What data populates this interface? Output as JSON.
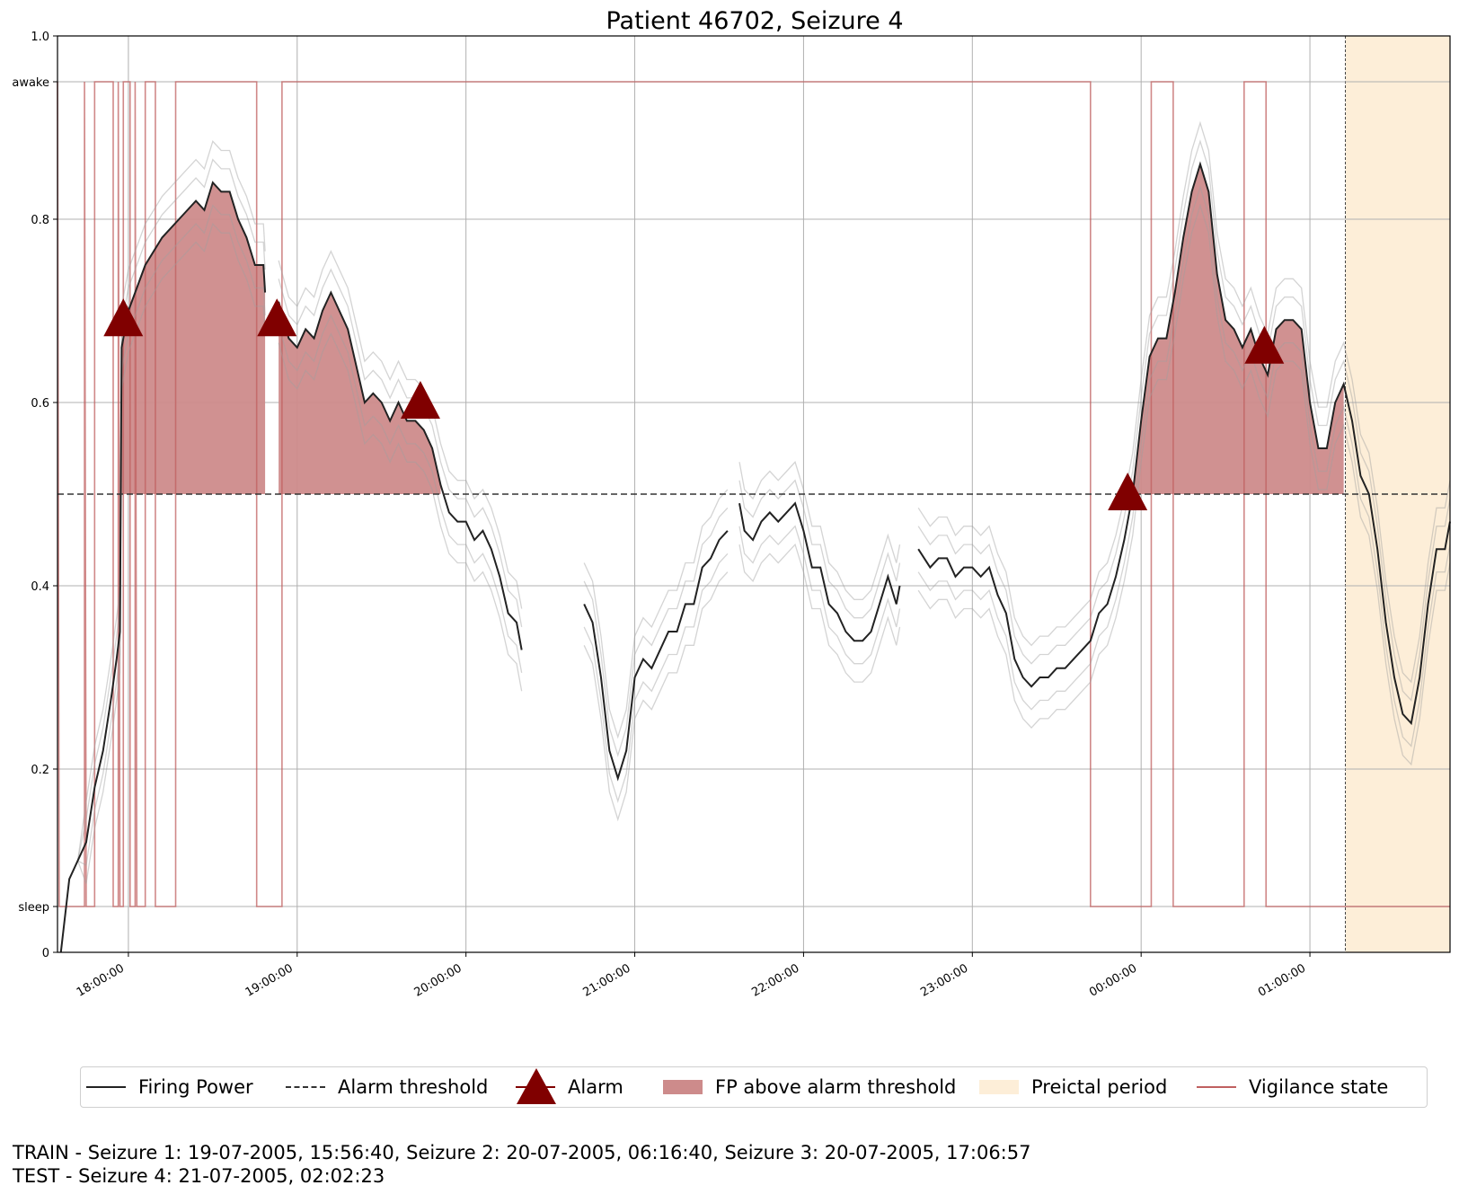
{
  "chart_data": {
    "type": "line",
    "title": "Patient 46702, Seizure 4",
    "xlabel": "",
    "ylabel": "",
    "x_range_hours": [
      17.58,
      25.83
    ],
    "ylim": [
      0,
      1.0
    ],
    "x_ticks": [
      {
        "t": 18,
        "label": "18:00:00"
      },
      {
        "t": 19,
        "label": "19:00:00"
      },
      {
        "t": 20,
        "label": "20:00:00"
      },
      {
        "t": 21,
        "label": "21:00:00"
      },
      {
        "t": 22,
        "label": "22:00:00"
      },
      {
        "t": 23,
        "label": "23:00:00"
      },
      {
        "t": 24,
        "label": "00:00:00"
      },
      {
        "t": 25,
        "label": "01:00:00"
      }
    ],
    "y_ticks": [
      {
        "v": 0,
        "label": "0"
      },
      {
        "v": 0.05,
        "label": "sleep"
      },
      {
        "v": 0.2,
        "label": "0.2"
      },
      {
        "v": 0.4,
        "label": "0.4"
      },
      {
        "v": 0.6,
        "label": "0.6"
      },
      {
        "v": 0.8,
        "label": "0.8"
      },
      {
        "v": 0.95,
        "label": "awake"
      },
      {
        "v": 1.0,
        "label": "1.0"
      }
    ],
    "grid": true,
    "alarm_threshold": 0.5,
    "preictal_period": [
      25.21,
      25.83
    ],
    "alarms": [
      {
        "t": 17.97,
        "value": 0.69
      },
      {
        "t": 18.88,
        "value": 0.69
      },
      {
        "t": 19.73,
        "value": 0.6
      },
      {
        "t": 23.92,
        "value": 0.5
      },
      {
        "t": 24.73,
        "value": 0.66
      }
    ],
    "firing_power_segments": [
      [
        [
          17.6,
          0.0
        ],
        [
          17.65,
          0.08
        ],
        [
          17.7,
          0.1
        ],
        [
          17.75,
          0.12
        ],
        [
          17.8,
          0.18
        ],
        [
          17.85,
          0.22
        ],
        [
          17.9,
          0.28
        ],
        [
          17.93,
          0.32
        ],
        [
          17.95,
          0.35
        ],
        [
          17.96,
          0.66
        ],
        [
          18.0,
          0.7
        ],
        [
          18.1,
          0.75
        ],
        [
          18.2,
          0.78
        ],
        [
          18.3,
          0.8
        ],
        [
          18.4,
          0.82
        ],
        [
          18.45,
          0.81
        ],
        [
          18.5,
          0.84
        ],
        [
          18.55,
          0.83
        ],
        [
          18.6,
          0.83
        ],
        [
          18.65,
          0.8
        ],
        [
          18.7,
          0.78
        ],
        [
          18.75,
          0.75
        ],
        [
          18.8,
          0.75
        ],
        [
          18.81,
          0.72
        ]
      ],
      [
        [
          18.89,
          0.71
        ],
        [
          18.95,
          0.67
        ],
        [
          19.0,
          0.66
        ],
        [
          19.05,
          0.68
        ],
        [
          19.1,
          0.67
        ],
        [
          19.15,
          0.7
        ],
        [
          19.2,
          0.72
        ],
        [
          19.25,
          0.7
        ],
        [
          19.3,
          0.68
        ],
        [
          19.35,
          0.64
        ],
        [
          19.4,
          0.6
        ],
        [
          19.45,
          0.61
        ],
        [
          19.5,
          0.6
        ],
        [
          19.55,
          0.58
        ],
        [
          19.6,
          0.6
        ],
        [
          19.65,
          0.58
        ],
        [
          19.7,
          0.58
        ],
        [
          19.75,
          0.57
        ],
        [
          19.8,
          0.55
        ],
        [
          19.85,
          0.51
        ],
        [
          19.9,
          0.48
        ],
        [
          19.95,
          0.47
        ],
        [
          20.0,
          0.47
        ],
        [
          20.05,
          0.45
        ],
        [
          20.1,
          0.46
        ],
        [
          20.15,
          0.44
        ],
        [
          20.2,
          0.41
        ],
        [
          20.25,
          0.37
        ],
        [
          20.3,
          0.36
        ],
        [
          20.33,
          0.33
        ]
      ],
      [
        [
          20.7,
          0.38
        ],
        [
          20.75,
          0.36
        ],
        [
          20.8,
          0.3
        ],
        [
          20.85,
          0.22
        ],
        [
          20.9,
          0.19
        ],
        [
          20.95,
          0.22
        ],
        [
          21.0,
          0.3
        ],
        [
          21.05,
          0.32
        ],
        [
          21.1,
          0.31
        ],
        [
          21.15,
          0.33
        ],
        [
          21.2,
          0.35
        ],
        [
          21.25,
          0.35
        ],
        [
          21.3,
          0.38
        ],
        [
          21.35,
          0.38
        ],
        [
          21.4,
          0.42
        ],
        [
          21.45,
          0.43
        ],
        [
          21.5,
          0.45
        ],
        [
          21.55,
          0.46
        ]
      ],
      [
        [
          21.62,
          0.49
        ],
        [
          21.65,
          0.46
        ],
        [
          21.7,
          0.45
        ],
        [
          21.75,
          0.47
        ],
        [
          21.8,
          0.48
        ],
        [
          21.85,
          0.47
        ],
        [
          21.9,
          0.48
        ],
        [
          21.95,
          0.49
        ],
        [
          22.0,
          0.46
        ],
        [
          22.05,
          0.42
        ],
        [
          22.1,
          0.42
        ],
        [
          22.15,
          0.38
        ],
        [
          22.2,
          0.37
        ],
        [
          22.25,
          0.35
        ],
        [
          22.3,
          0.34
        ],
        [
          22.35,
          0.34
        ],
        [
          22.4,
          0.35
        ],
        [
          22.45,
          0.38
        ],
        [
          22.5,
          0.41
        ],
        [
          22.55,
          0.38
        ],
        [
          22.57,
          0.4
        ]
      ],
      [
        [
          22.68,
          0.44
        ],
        [
          22.75,
          0.42
        ],
        [
          22.8,
          0.43
        ],
        [
          22.85,
          0.43
        ],
        [
          22.9,
          0.41
        ],
        [
          22.95,
          0.42
        ],
        [
          23.0,
          0.42
        ],
        [
          23.05,
          0.41
        ],
        [
          23.1,
          0.42
        ],
        [
          23.15,
          0.39
        ],
        [
          23.2,
          0.37
        ],
        [
          23.25,
          0.32
        ],
        [
          23.3,
          0.3
        ],
        [
          23.35,
          0.29
        ],
        [
          23.4,
          0.3
        ],
        [
          23.45,
          0.3
        ],
        [
          23.5,
          0.31
        ],
        [
          23.55,
          0.31
        ],
        [
          23.6,
          0.32
        ],
        [
          23.65,
          0.33
        ],
        [
          23.7,
          0.34
        ],
        [
          23.75,
          0.37
        ],
        [
          23.8,
          0.38
        ],
        [
          23.85,
          0.41
        ],
        [
          23.9,
          0.45
        ],
        [
          23.95,
          0.5
        ],
        [
          24.0,
          0.58
        ],
        [
          24.05,
          0.65
        ],
        [
          24.1,
          0.67
        ],
        [
          24.15,
          0.67
        ],
        [
          24.2,
          0.72
        ],
        [
          24.25,
          0.78
        ],
        [
          24.3,
          0.83
        ],
        [
          24.35,
          0.86
        ],
        [
          24.4,
          0.83
        ],
        [
          24.45,
          0.74
        ],
        [
          24.5,
          0.69
        ],
        [
          24.55,
          0.68
        ],
        [
          24.6,
          0.66
        ],
        [
          24.65,
          0.68
        ],
        [
          24.7,
          0.65
        ],
        [
          24.75,
          0.63
        ],
        [
          24.8,
          0.68
        ],
        [
          24.85,
          0.69
        ],
        [
          24.9,
          0.69
        ],
        [
          24.95,
          0.68
        ],
        [
          25.0,
          0.6
        ],
        [
          25.05,
          0.55
        ],
        [
          25.1,
          0.55
        ],
        [
          25.15,
          0.6
        ],
        [
          25.2,
          0.62
        ],
        [
          25.25,
          0.58
        ],
        [
          25.3,
          0.52
        ],
        [
          25.35,
          0.5
        ],
        [
          25.4,
          0.44
        ],
        [
          25.45,
          0.36
        ],
        [
          25.5,
          0.3
        ],
        [
          25.55,
          0.26
        ],
        [
          25.6,
          0.25
        ],
        [
          25.65,
          0.3
        ],
        [
          25.7,
          0.38
        ],
        [
          25.75,
          0.44
        ],
        [
          25.8,
          0.44
        ],
        [
          25.83,
          0.47
        ]
      ]
    ],
    "vigilance_state": [
      [
        17.58,
        0.95
      ],
      [
        17.59,
        0.05
      ],
      [
        17.74,
        0.05
      ],
      [
        17.74,
        0.95
      ],
      [
        17.75,
        0.05
      ],
      [
        17.8,
        0.05
      ],
      [
        17.8,
        0.95
      ],
      [
        17.91,
        0.95
      ],
      [
        17.91,
        0.05
      ],
      [
        17.94,
        0.05
      ],
      [
        17.94,
        0.95
      ],
      [
        17.95,
        0.05
      ],
      [
        17.97,
        0.05
      ],
      [
        17.97,
        0.95
      ],
      [
        18.01,
        0.95
      ],
      [
        18.01,
        0.05
      ],
      [
        18.04,
        0.05
      ],
      [
        18.04,
        0.95
      ],
      [
        18.05,
        0.05
      ],
      [
        18.1,
        0.05
      ],
      [
        18.1,
        0.95
      ],
      [
        18.16,
        0.95
      ],
      [
        18.16,
        0.05
      ],
      [
        18.28,
        0.05
      ],
      [
        18.28,
        0.95
      ],
      [
        18.76,
        0.95
      ],
      [
        18.76,
        0.05
      ],
      [
        18.91,
        0.05
      ],
      [
        18.91,
        0.95
      ],
      [
        23.7,
        0.95
      ],
      [
        23.7,
        0.05
      ],
      [
        24.06,
        0.05
      ],
      [
        24.06,
        0.95
      ],
      [
        24.19,
        0.95
      ],
      [
        24.19,
        0.05
      ],
      [
        24.61,
        0.05
      ],
      [
        24.61,
        0.95
      ],
      [
        24.74,
        0.95
      ],
      [
        24.74,
        0.05
      ],
      [
        25.83,
        0.05
      ]
    ],
    "series": [
      {
        "name": "Firing Power",
        "color": "#222222",
        "style": "solid"
      },
      {
        "name": "Alarm threshold",
        "color": "#333333",
        "style": "dashed"
      },
      {
        "name": "Alarm",
        "color": "#800000",
        "marker": "triangle"
      },
      {
        "name": "FP above alarm threshold",
        "color": "#cd8b8b",
        "style": "fill"
      },
      {
        "name": "Preictal period",
        "color": "#fdeed8",
        "style": "fill"
      },
      {
        "name": "Vigilance state",
        "color": "#c06060",
        "style": "solid"
      }
    ]
  },
  "footer": {
    "line1": "TRAIN - Seizure 1: 19-07-2005, 15:56:40, Seizure 2: 20-07-2005, 06:16:40, Seizure 3: 20-07-2005, 17:06:57",
    "line2": "TEST - Seizure 4: 21-07-2005, 02:02:23"
  }
}
